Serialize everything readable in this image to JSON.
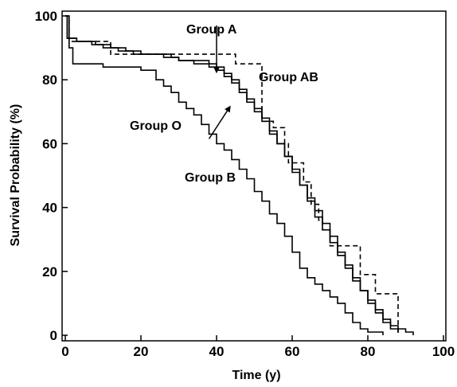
{
  "chart_data": {
    "type": "line",
    "xlabel": "Time (y)",
    "ylabel": "Survival Probability (%)",
    "xlim": [
      0,
      100
    ],
    "ylim": [
      0,
      100
    ],
    "xticks": [
      0,
      20,
      40,
      60,
      80,
      100
    ],
    "yticks": [
      0,
      20,
      40,
      60,
      80,
      100
    ],
    "grid": false,
    "annotations": [
      "Group A",
      "Group AB",
      "Group O",
      "Group B"
    ],
    "series": [
      {
        "name": "Group A",
        "style": "solid",
        "x": [
          0,
          0.5,
          3,
          7,
          10,
          14,
          18,
          22,
          26,
          30,
          34,
          38,
          40,
          42,
          44,
          46,
          48,
          50,
          52,
          54,
          56,
          58,
          60,
          62,
          64,
          66,
          68,
          70,
          72,
          74,
          76,
          78,
          80,
          82,
          84,
          86,
          88
        ],
        "y": [
          100,
          93,
          92,
          91,
          90,
          89,
          88,
          88,
          87,
          86,
          86,
          85,
          84,
          82,
          80,
          77,
          74,
          71,
          68,
          64,
          60,
          56,
          51,
          47,
          43,
          39,
          35,
          31,
          26,
          22,
          18,
          14,
          10,
          7,
          4,
          2,
          1
        ]
      },
      {
        "name": "Group AB",
        "style": "dashed",
        "x": [
          0,
          1,
          3,
          12,
          16,
          44,
          45,
          51,
          52,
          55,
          58,
          59,
          62,
          63,
          65,
          67,
          68,
          70,
          77,
          78,
          82,
          86,
          88
        ],
        "y": [
          100,
          92,
          92,
          88,
          88,
          88,
          85,
          85,
          67,
          65,
          60,
          54,
          54,
          48,
          41,
          36,
          33,
          28,
          28,
          19,
          13,
          13,
          0
        ]
      },
      {
        "name": "Group O",
        "style": "solid",
        "x": [
          0,
          0.5,
          3,
          8,
          12,
          16,
          20,
          24,
          28,
          30,
          32,
          34,
          36,
          38,
          40,
          42,
          44,
          46,
          48,
          50,
          52,
          54,
          56,
          58,
          60,
          62,
          64,
          66,
          68,
          70,
          72,
          74,
          76,
          78,
          80,
          82,
          84,
          86,
          88,
          90,
          92
        ],
        "y": [
          100,
          93,
          92,
          91,
          90,
          89,
          88,
          88,
          87,
          86,
          86,
          85,
          85,
          84,
          83,
          81,
          79,
          76,
          73,
          70,
          67,
          63,
          60,
          56,
          52,
          47,
          42,
          37,
          33,
          29,
          25,
          21,
          17,
          14,
          11,
          8,
          5,
          3,
          2,
          1,
          0
        ]
      },
      {
        "name": "Group B",
        "style": "solid",
        "x": [
          0,
          1,
          2,
          10,
          15,
          20,
          24,
          26,
          28,
          30,
          32,
          34,
          36,
          38,
          40,
          42,
          44,
          46,
          48,
          50,
          52,
          54,
          56,
          58,
          60,
          62,
          64,
          66,
          68,
          70,
          72,
          74,
          76,
          78,
          80,
          82,
          84
        ],
        "y": [
          100,
          90,
          85,
          84,
          84,
          83,
          80,
          78,
          76,
          73,
          71,
          69,
          66,
          63,
          60,
          58,
          55,
          52,
          49,
          45,
          42,
          38,
          35,
          31,
          26,
          21,
          18,
          16,
          14,
          12,
          10,
          7,
          4,
          2,
          1,
          1,
          0
        ]
      }
    ]
  },
  "arrows": [
    {
      "from": [
        40,
        97
      ],
      "to": [
        40,
        82.5
      ]
    },
    {
      "from": [
        38,
        61.5
      ],
      "to": [
        43.5,
        71.5
      ]
    }
  ],
  "colors": {
    "line": "#000000",
    "background": "#ffffff"
  }
}
